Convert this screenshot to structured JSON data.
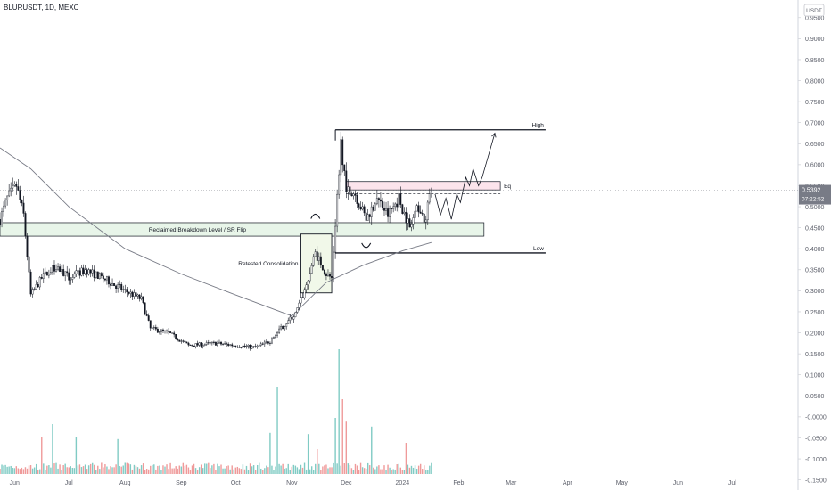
{
  "header": {
    "symbol_title": "BLURUSDT, 1D, MEXC"
  },
  "currency_badge": "USDT",
  "last_price": {
    "value": "0.5392",
    "countdown": "07:22:52"
  },
  "chart_data": {
    "type": "candlestick",
    "title": "BLURUSDT, 1D, MEXC",
    "ylim": [
      -0.155,
      0.975
    ],
    "y_ticks": [
      "0.9500",
      "0.9000",
      "0.8500",
      "0.8000",
      "0.7500",
      "0.7000",
      "0.6500",
      "0.6000",
      "0.5500",
      "0.5000",
      "0.4500",
      "0.4000",
      "0.3500",
      "0.3000",
      "0.2500",
      "0.2000",
      "0.1500",
      "0.1000",
      "0.0500",
      "-0.0000",
      "-0.0500",
      "-0.1000",
      "-0.1500"
    ],
    "x_ticks": [
      {
        "label": "Jun",
        "date": "2023-06-01"
      },
      {
        "label": "Jul",
        "date": "2023-07-01"
      },
      {
        "label": "Aug",
        "date": "2023-08-01"
      },
      {
        "label": "Sep",
        "date": "2023-09-01"
      },
      {
        "label": "Oct",
        "date": "2023-10-01"
      },
      {
        "label": "Nov",
        "date": "2023-11-01"
      },
      {
        "label": "Dec",
        "date": "2023-12-01"
      },
      {
        "label": "2024",
        "date": "2024-01-01"
      },
      {
        "label": "Feb",
        "date": "2024-02-01"
      },
      {
        "label": "Mar",
        "date": "2024-03-01"
      },
      {
        "label": "Apr",
        "date": "2024-04-01"
      },
      {
        "label": "May",
        "date": "2024-05-01"
      },
      {
        "label": "Jun",
        "date": "2024-06-01"
      },
      {
        "label": "Jul",
        "date": "2024-07-01"
      }
    ],
    "colors": {
      "up": "#26a69a",
      "down": "#ef5350",
      "candle": "#131722",
      "ma": "#787b86",
      "zone_fill": "#e8f5e9",
      "eq_fill": "#fce4ec",
      "text": "#131722",
      "axis_text": "#5d606b"
    },
    "price_anchors": [
      [
        "2023-05-24",
        0.47
      ],
      [
        "2023-05-28",
        0.52
      ],
      [
        "2023-06-02",
        0.55
      ],
      [
        "2023-06-06",
        0.48
      ],
      [
        "2023-06-10",
        0.29
      ],
      [
        "2023-06-16",
        0.33
      ],
      [
        "2023-06-24",
        0.36
      ],
      [
        "2023-07-01",
        0.33
      ],
      [
        "2023-07-10",
        0.35
      ],
      [
        "2023-07-20",
        0.33
      ],
      [
        "2023-08-01",
        0.3
      ],
      [
        "2023-08-10",
        0.28
      ],
      [
        "2023-08-15",
        0.21
      ],
      [
        "2023-08-25",
        0.2
      ],
      [
        "2023-09-05",
        0.17
      ],
      [
        "2023-09-20",
        0.175
      ],
      [
        "2023-10-01",
        0.17
      ],
      [
        "2023-10-12",
        0.165
      ],
      [
        "2023-10-20",
        0.18
      ],
      [
        "2023-10-27",
        0.215
      ],
      [
        "2023-11-03",
        0.245
      ],
      [
        "2023-11-08",
        0.3
      ],
      [
        "2023-11-14",
        0.39
      ],
      [
        "2023-11-20",
        0.34
      ],
      [
        "2023-11-23",
        0.33
      ],
      [
        "2023-11-25",
        0.46
      ],
      [
        "2023-11-28",
        0.65
      ],
      [
        "2023-12-01",
        0.55
      ],
      [
        "2023-12-06",
        0.53
      ],
      [
        "2023-12-12",
        0.47
      ],
      [
        "2023-12-18",
        0.52
      ],
      [
        "2023-12-24",
        0.48
      ],
      [
        "2023-12-30",
        0.52
      ],
      [
        "2024-01-05",
        0.45
      ],
      [
        "2024-01-10",
        0.5
      ],
      [
        "2024-01-13",
        0.46
      ],
      [
        "2024-01-17",
        0.539
      ]
    ],
    "ma_series": [
      [
        "2023-05-24",
        0.64
      ],
      [
        "2023-06-10",
        0.59
      ],
      [
        "2023-07-01",
        0.5
      ],
      [
        "2023-08-01",
        0.4
      ],
      [
        "2023-09-01",
        0.34
      ],
      [
        "2023-10-01",
        0.29
      ],
      [
        "2023-11-01",
        0.24
      ],
      [
        "2023-11-20",
        0.32
      ],
      [
        "2023-12-10",
        0.36
      ],
      [
        "2024-01-01",
        0.395
      ],
      [
        "2024-01-17",
        0.415
      ]
    ],
    "annotations": {
      "support_zone": {
        "from": "2023-05-24",
        "to": "2024-02-15",
        "low": 0.43,
        "high": 0.462,
        "label": "Reclaimed Breakdown Level / SR Flip"
      },
      "consolidation_box": {
        "from": "2023-11-06",
        "to": "2023-11-23",
        "low": 0.295,
        "high": 0.435,
        "label": "Retested Consolidation"
      },
      "high_line": {
        "from": "2023-11-25",
        "to": "2024-03-20",
        "value": 0.683,
        "label": "High"
      },
      "low_line": {
        "from": "2023-11-25",
        "to": "2024-03-20",
        "value": 0.39,
        "label": "Low"
      },
      "eq_zone": {
        "from": "2023-12-01",
        "to": "2024-02-24",
        "low": 0.54,
        "high": 0.56,
        "label": "Eq"
      },
      "eq_dashed": {
        "from": "2023-12-01",
        "to": "2024-02-24",
        "value": 0.531
      },
      "projection": [
        [
          "2024-01-19",
          0.53
        ],
        [
          "2024-01-22",
          0.48
        ],
        [
          "2024-01-25",
          0.52
        ],
        [
          "2024-01-28",
          0.47
        ],
        [
          "2024-01-31",
          0.53
        ],
        [
          "2024-02-02",
          0.51
        ],
        [
          "2024-02-05",
          0.57
        ],
        [
          "2024-02-07",
          0.55
        ],
        [
          "2024-02-09",
          0.59
        ],
        [
          "2024-02-12",
          0.55
        ],
        [
          "2024-02-14",
          0.57
        ],
        [
          "2024-02-17",
          0.615
        ],
        [
          "2024-02-21",
          0.675
        ]
      ]
    },
    "volume_scale_max": 1.0,
    "volume_spikes": [
      [
        "2023-06-16",
        0.3
      ],
      [
        "2023-06-22",
        0.4
      ],
      [
        "2023-07-05",
        0.3
      ],
      [
        "2023-07-28",
        0.28
      ],
      [
        "2023-10-20",
        0.33
      ],
      [
        "2023-10-24",
        0.7
      ],
      [
        "2023-11-10",
        0.32
      ],
      [
        "2023-11-15",
        0.2
      ],
      [
        "2023-11-25",
        0.45
      ],
      [
        "2023-11-27",
        1.0
      ],
      [
        "2023-11-29",
        0.6
      ],
      [
        "2023-12-01",
        0.42
      ],
      [
        "2023-12-15",
        0.38
      ],
      [
        "2024-01-03",
        0.25
      ]
    ]
  }
}
